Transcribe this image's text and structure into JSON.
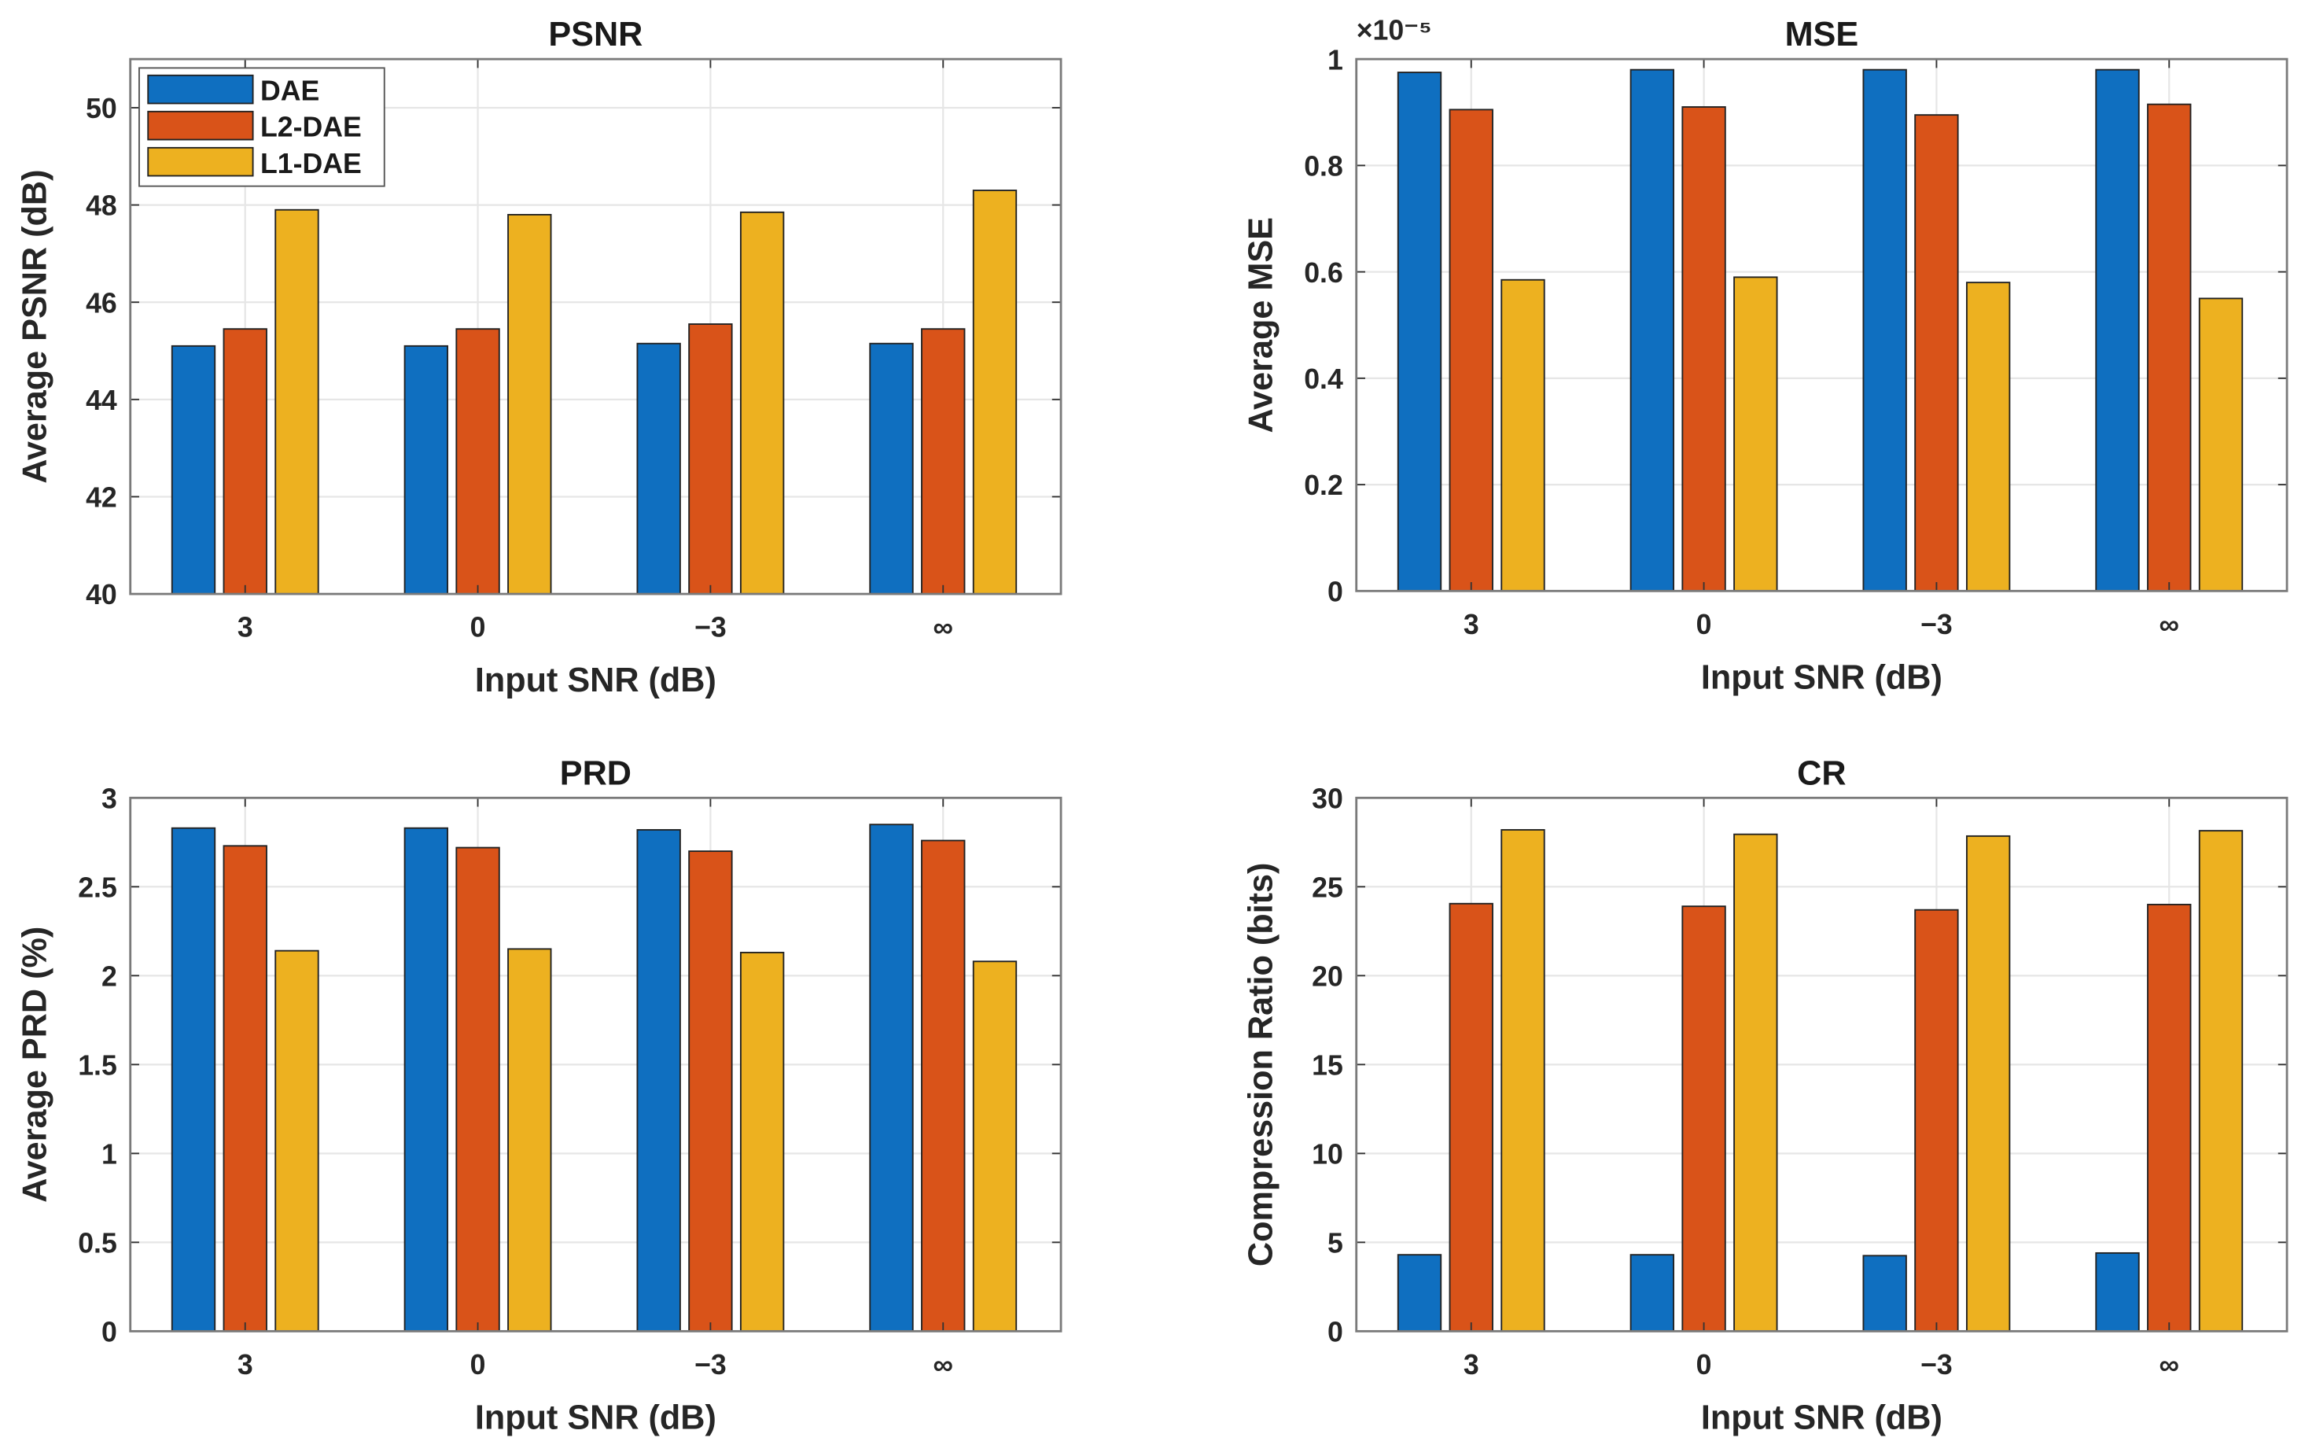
{
  "legend": [
    "DAE",
    "L2-DAE",
    "L1-DAE"
  ],
  "colors": {
    "DAE": "#0F6FC0",
    "L2-DAE": "#D95319",
    "L1-DAE": "#EDB120"
  },
  "chart_data": [
    {
      "type": "bar",
      "title": "PSNR",
      "xlabel": "Input SNR (dB)",
      "ylabel": "Average PSNR (dB)",
      "categories": [
        "3",
        "0",
        "−3",
        "∞"
      ],
      "ylim": [
        40,
        51
      ],
      "yticks": [
        40,
        42,
        44,
        46,
        48,
        50
      ],
      "ytick_labels": [
        "40",
        "42",
        "44",
        "46",
        "48",
        "50"
      ],
      "grid": true,
      "legend_position": "top-left",
      "series": [
        {
          "name": "DAE",
          "values": [
            45.1,
            45.1,
            45.15,
            45.15
          ]
        },
        {
          "name": "L2-DAE",
          "values": [
            45.45,
            45.45,
            45.55,
            45.45
          ]
        },
        {
          "name": "L1-DAE",
          "values": [
            47.9,
            47.8,
            47.85,
            48.3
          ]
        }
      ]
    },
    {
      "type": "bar",
      "title": "MSE",
      "xlabel": "Input SNR (dB)",
      "ylabel": "Average MSE",
      "exponent_label": "×10⁻⁵",
      "categories": [
        "3",
        "0",
        "−3",
        "∞"
      ],
      "ylim": [
        0,
        1
      ],
      "yticks": [
        0,
        0.2,
        0.4,
        0.6,
        0.8,
        1
      ],
      "ytick_labels": [
        "0",
        "0.2",
        "0.4",
        "0.6",
        "0.8",
        "1"
      ],
      "grid": true,
      "series": [
        {
          "name": "DAE",
          "values": [
            0.975,
            0.98,
            0.98,
            0.98
          ]
        },
        {
          "name": "L2-DAE",
          "values": [
            0.905,
            0.91,
            0.895,
            0.915
          ]
        },
        {
          "name": "L1-DAE",
          "values": [
            0.585,
            0.59,
            0.58,
            0.55
          ]
        }
      ]
    },
    {
      "type": "bar",
      "title": "PRD",
      "xlabel": "Input SNR (dB)",
      "ylabel": "Average PRD (%)",
      "categories": [
        "3",
        "0",
        "−3",
        "∞"
      ],
      "ylim": [
        0,
        3
      ],
      "yticks": [
        0,
        0.5,
        1,
        1.5,
        2,
        2.5,
        3
      ],
      "ytick_labels": [
        "0",
        "0.5",
        "1",
        "1.5",
        "2",
        "2.5",
        "3"
      ],
      "grid": true,
      "series": [
        {
          "name": "DAE",
          "values": [
            2.83,
            2.83,
            2.82,
            2.85
          ]
        },
        {
          "name": "L2-DAE",
          "values": [
            2.73,
            2.72,
            2.7,
            2.76
          ]
        },
        {
          "name": "L1-DAE",
          "values": [
            2.14,
            2.15,
            2.13,
            2.08
          ]
        }
      ]
    },
    {
      "type": "bar",
      "title": "CR",
      "xlabel": "Input SNR (dB)",
      "ylabel": "Compression Ratio (bits)",
      "categories": [
        "3",
        "0",
        "−3",
        "∞"
      ],
      "ylim": [
        0,
        30
      ],
      "yticks": [
        0,
        5,
        10,
        15,
        20,
        25,
        30
      ],
      "ytick_labels": [
        "0",
        "5",
        "10",
        "15",
        "20",
        "25",
        "30"
      ],
      "grid": true,
      "series": [
        {
          "name": "DAE",
          "values": [
            4.3,
            4.3,
            4.25,
            4.4
          ]
        },
        {
          "name": "L2-DAE",
          "values": [
            24.05,
            23.9,
            23.7,
            24.0
          ]
        },
        {
          "name": "L1-DAE",
          "values": [
            28.2,
            27.95,
            27.85,
            28.15
          ]
        }
      ]
    }
  ]
}
